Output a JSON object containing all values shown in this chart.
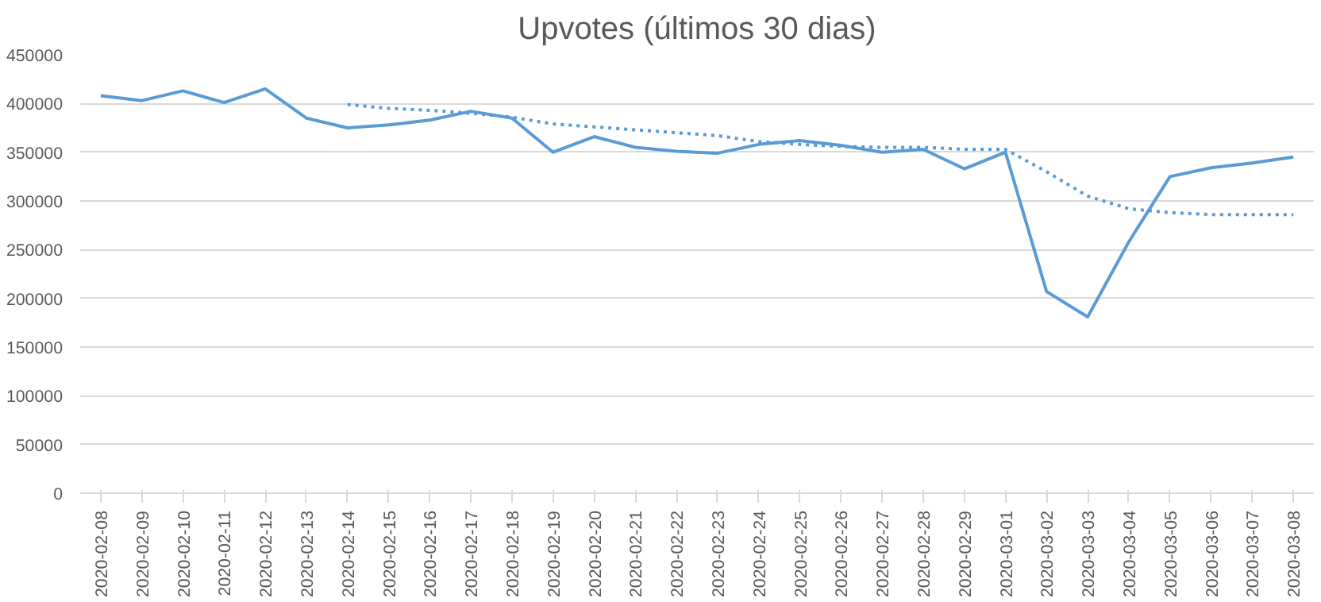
{
  "chart_data": {
    "type": "line",
    "title": "Upvotes (últimos 30 dias)",
    "categories": [
      "2020-02-08",
      "2020-02-09",
      "2020-02-10",
      "2020-02-11",
      "2020-02-12",
      "2020-02-13",
      "2020-02-14",
      "2020-02-15",
      "2020-02-16",
      "2020-02-17",
      "2020-02-18",
      "2020-02-19",
      "2020-02-20",
      "2020-02-21",
      "2020-02-22",
      "2020-02-23",
      "2020-02-24",
      "2020-02-25",
      "2020-02-26",
      "2020-02-27",
      "2020-02-28",
      "2020-02-29",
      "2020-03-01",
      "2020-03-02",
      "2020-03-03",
      "2020-03-04",
      "2020-03-05",
      "2020-03-06",
      "2020-03-07",
      "2020-03-08"
    ],
    "series": [
      {
        "color": "#5b9bd5",
        "line_style": "solid",
        "values": [
          408000,
          403000,
          413000,
          401000,
          415000,
          385000,
          375000,
          378000,
          383000,
          392000,
          385000,
          350000,
          366000,
          355000,
          351000,
          349000,
          358000,
          362000,
          357000,
          350000,
          353000,
          333000,
          350000,
          207000,
          181000,
          258000,
          325000,
          334000,
          339000,
          345000
        ]
      },
      {
        "color": "#5b9bd5",
        "line_style": "dotted",
        "values": [
          null,
          null,
          null,
          null,
          null,
          null,
          399000,
          395000,
          393000,
          390000,
          386000,
          379000,
          376000,
          373000,
          370000,
          367000,
          361000,
          358000,
          356000,
          355000,
          355000,
          353000,
          353000,
          330000,
          305000,
          292000,
          288000,
          286000,
          286000,
          286000
        ]
      }
    ],
    "ylim": [
      0,
      450000
    ],
    "yticks": [
      0,
      50000,
      100000,
      150000,
      200000,
      250000,
      300000,
      350000,
      400000,
      450000
    ],
    "grid": "y",
    "marker": "none"
  }
}
